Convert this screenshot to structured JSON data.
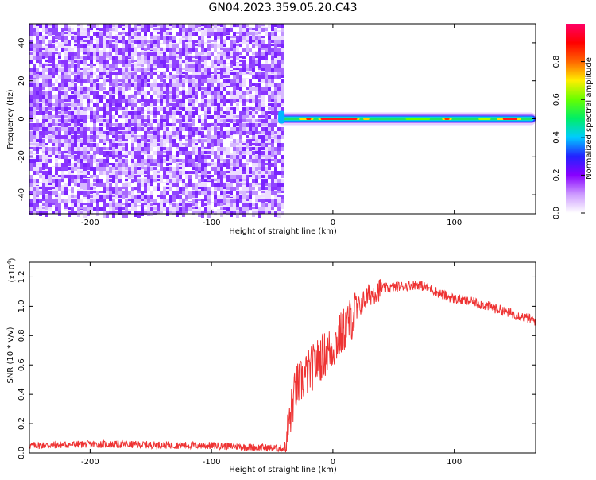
{
  "title": "GN04.2023.359.05.20.C43",
  "chart_data": [
    {
      "type": "heatmap",
      "xlabel": "Height of straight line (km)",
      "ylabel": "Frequency (Hz)",
      "xlim": [
        -250,
        167
      ],
      "ylim": [
        -50,
        50
      ],
      "x_ticks": [
        -200,
        -100,
        0,
        100
      ],
      "y_ticks": [
        -40,
        -20,
        0,
        20,
        40
      ],
      "noise_region_x": [
        -250,
        -43
      ],
      "signal_track_x": [
        -45,
        167
      ],
      "signal_freq_hz": 0,
      "colorbar": {
        "label": "Normalized spectral amplitude",
        "range": [
          0,
          1
        ],
        "ticks": [
          "0.0",
          "0.2",
          "0.4",
          "0.6",
          "0.8"
        ],
        "colors": [
          "#ffffff",
          "#cc99ff",
          "#8800ff",
          "#2222ff",
          "#00ccff",
          "#00ee66",
          "#66ff00",
          "#ffee00",
          "#ff6600",
          "#ff0000",
          "#ff0066"
        ]
      },
      "grid": false
    },
    {
      "type": "line",
      "xlabel": "Height of straight line (km)",
      "ylabel": "SNR (10 * v/v)",
      "y_multiplier": "(x10",
      "y_multiplier_exp": "4",
      "y_multiplier_close": ")",
      "xlim": [
        -250,
        167
      ],
      "ylim": [
        0,
        1.3
      ],
      "x_ticks": [
        -200,
        -100,
        0,
        100
      ],
      "y_ticks": [
        "0.0",
        "0.2",
        "0.4",
        "0.6",
        "0.8",
        "1.0",
        "1.2"
      ],
      "color": "#ee3333",
      "series": [
        {
          "x": [
            -250,
            -200,
            -100,
            -40,
            -38,
            -33,
            -30,
            -20,
            -10,
            0,
            10,
            20,
            30,
            40,
            60,
            70,
            80,
            90,
            100,
            120,
            140,
            167
          ],
          "y": [
            0.05,
            0.06,
            0.05,
            0.03,
            0.1,
            0.35,
            0.45,
            0.55,
            0.65,
            0.72,
            0.85,
            0.98,
            1.08,
            1.12,
            1.14,
            1.15,
            1.12,
            1.08,
            1.05,
            1.02,
            0.97,
            0.9
          ]
        }
      ],
      "grid": false
    }
  ]
}
